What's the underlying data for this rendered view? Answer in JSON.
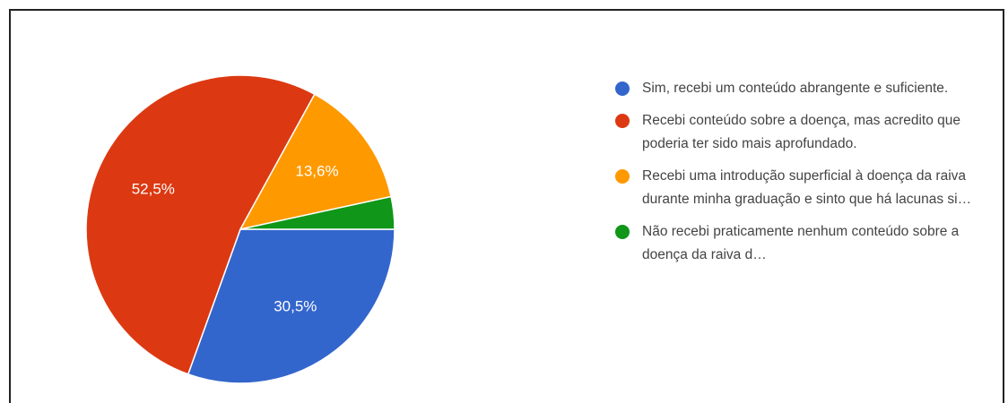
{
  "chart_data": {
    "type": "pie",
    "categories": [
      "Sim, recebi um conteúdo abrangente e suficiente.",
      "Recebi conteúdo sobre a doença, mas acredito que poderia ter sido mais aprofundado.",
      "Recebi uma introdução superficial à doença da raiva durante minha graduação e sinto que há lacunas si…",
      "Não recebi praticamente nenhum conteúdo sobre a doença da raiva d…"
    ],
    "values": [
      30.5,
      52.5,
      13.6,
      3.4
    ],
    "value_labels": [
      "30,5%",
      "52,5%",
      "13,6%",
      null
    ],
    "colors": [
      "#3366cc",
      "#dc3912",
      "#ff9900",
      "#109618"
    ]
  }
}
